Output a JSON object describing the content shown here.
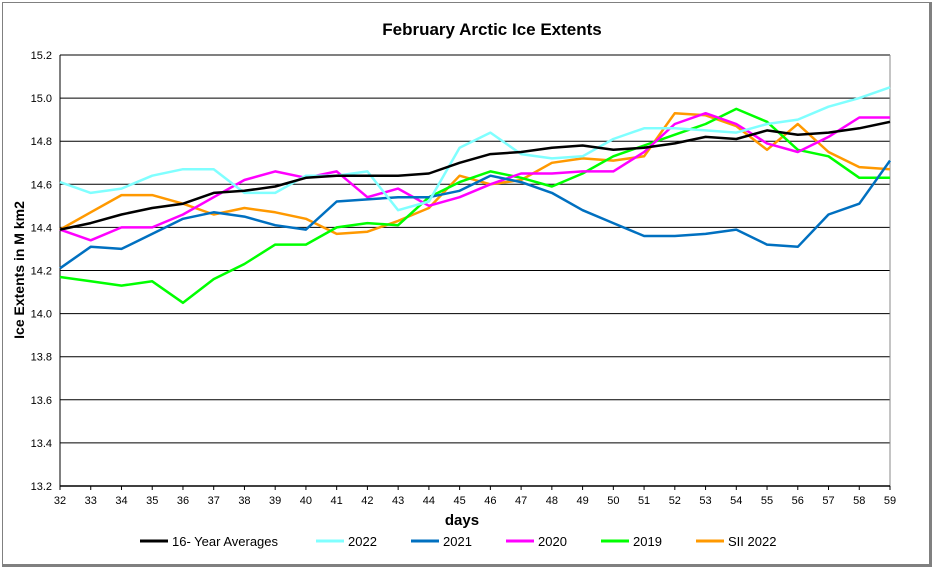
{
  "chart_data": {
    "type": "line",
    "title": "February Arctic Ice Extents",
    "xlabel": "days",
    "ylabel": "Ice Extents in M km2",
    "xlim": [
      32,
      59
    ],
    "ylim": [
      13.2,
      15.2
    ],
    "yticks": [
      "13.2",
      "13.4",
      "13.6",
      "13.8",
      "14.0",
      "14.2",
      "14.4",
      "14.6",
      "14.8",
      "15.0",
      "15.2"
    ],
    "x": [
      32,
      33,
      34,
      35,
      36,
      37,
      38,
      39,
      40,
      41,
      42,
      43,
      44,
      45,
      46,
      47,
      48,
      49,
      50,
      51,
      52,
      53,
      54,
      55,
      56,
      57,
      58,
      59
    ],
    "grid": "horizontal",
    "legend": "bottom",
    "series": [
      {
        "name": "16- Year Averages",
        "color": "#000000",
        "values": [
          14.39,
          14.42,
          14.46,
          14.49,
          14.51,
          14.56,
          14.57,
          14.59,
          14.63,
          14.64,
          14.64,
          14.64,
          14.65,
          14.7,
          14.74,
          14.75,
          14.77,
          14.78,
          14.76,
          14.77,
          14.79,
          14.82,
          14.81,
          14.85,
          14.83,
          14.84,
          14.86,
          14.89
        ]
      },
      {
        "name": "2022",
        "color": "#80FFFF",
        "values": [
          14.61,
          14.56,
          14.58,
          14.64,
          14.67,
          14.67,
          14.56,
          14.56,
          14.64,
          14.64,
          14.66,
          14.48,
          14.52,
          14.77,
          14.84,
          14.74,
          14.72,
          14.73,
          14.81,
          14.86,
          14.86,
          14.85,
          14.84,
          14.88,
          14.9,
          14.96,
          15.0,
          15.05
        ]
      },
      {
        "name": "2021",
        "color": "#0070C0",
        "values": [
          14.21,
          14.31,
          14.3,
          14.37,
          14.44,
          14.47,
          14.45,
          14.41,
          14.39,
          14.52,
          14.53,
          14.54,
          14.54,
          14.57,
          14.64,
          14.61,
          14.56,
          14.48,
          14.42,
          14.36,
          14.36,
          14.37,
          14.39,
          14.32,
          14.31,
          14.46,
          14.51,
          14.71
        ]
      },
      {
        "name": "2020",
        "color": "#FF00FF",
        "values": [
          14.39,
          14.34,
          14.4,
          14.4,
          14.46,
          14.54,
          14.62,
          14.66,
          14.63,
          14.66,
          14.54,
          14.58,
          14.5,
          14.54,
          14.6,
          14.65,
          14.65,
          14.66,
          14.66,
          14.75,
          14.88,
          14.93,
          14.88,
          14.79,
          14.75,
          14.82,
          14.91,
          14.91
        ]
      },
      {
        "name": "2019",
        "color": "#00FF00",
        "values": [
          14.17,
          14.15,
          14.13,
          14.15,
          14.05,
          14.16,
          14.23,
          14.32,
          14.32,
          14.4,
          14.42,
          14.41,
          14.54,
          14.61,
          14.66,
          14.63,
          14.59,
          14.65,
          14.73,
          14.78,
          14.83,
          14.88,
          14.95,
          14.89,
          14.76,
          14.73,
          14.63,
          14.63
        ]
      },
      {
        "name": "SII 2022",
        "color": "#FF9900",
        "values": [
          14.39,
          14.47,
          14.55,
          14.55,
          14.51,
          14.46,
          14.49,
          14.47,
          14.44,
          14.37,
          14.38,
          14.43,
          14.49,
          14.64,
          14.6,
          14.62,
          14.7,
          14.72,
          14.71,
          14.73,
          14.93,
          14.92,
          14.87,
          14.76,
          14.88,
          14.75,
          14.68,
          14.67
        ]
      }
    ]
  }
}
